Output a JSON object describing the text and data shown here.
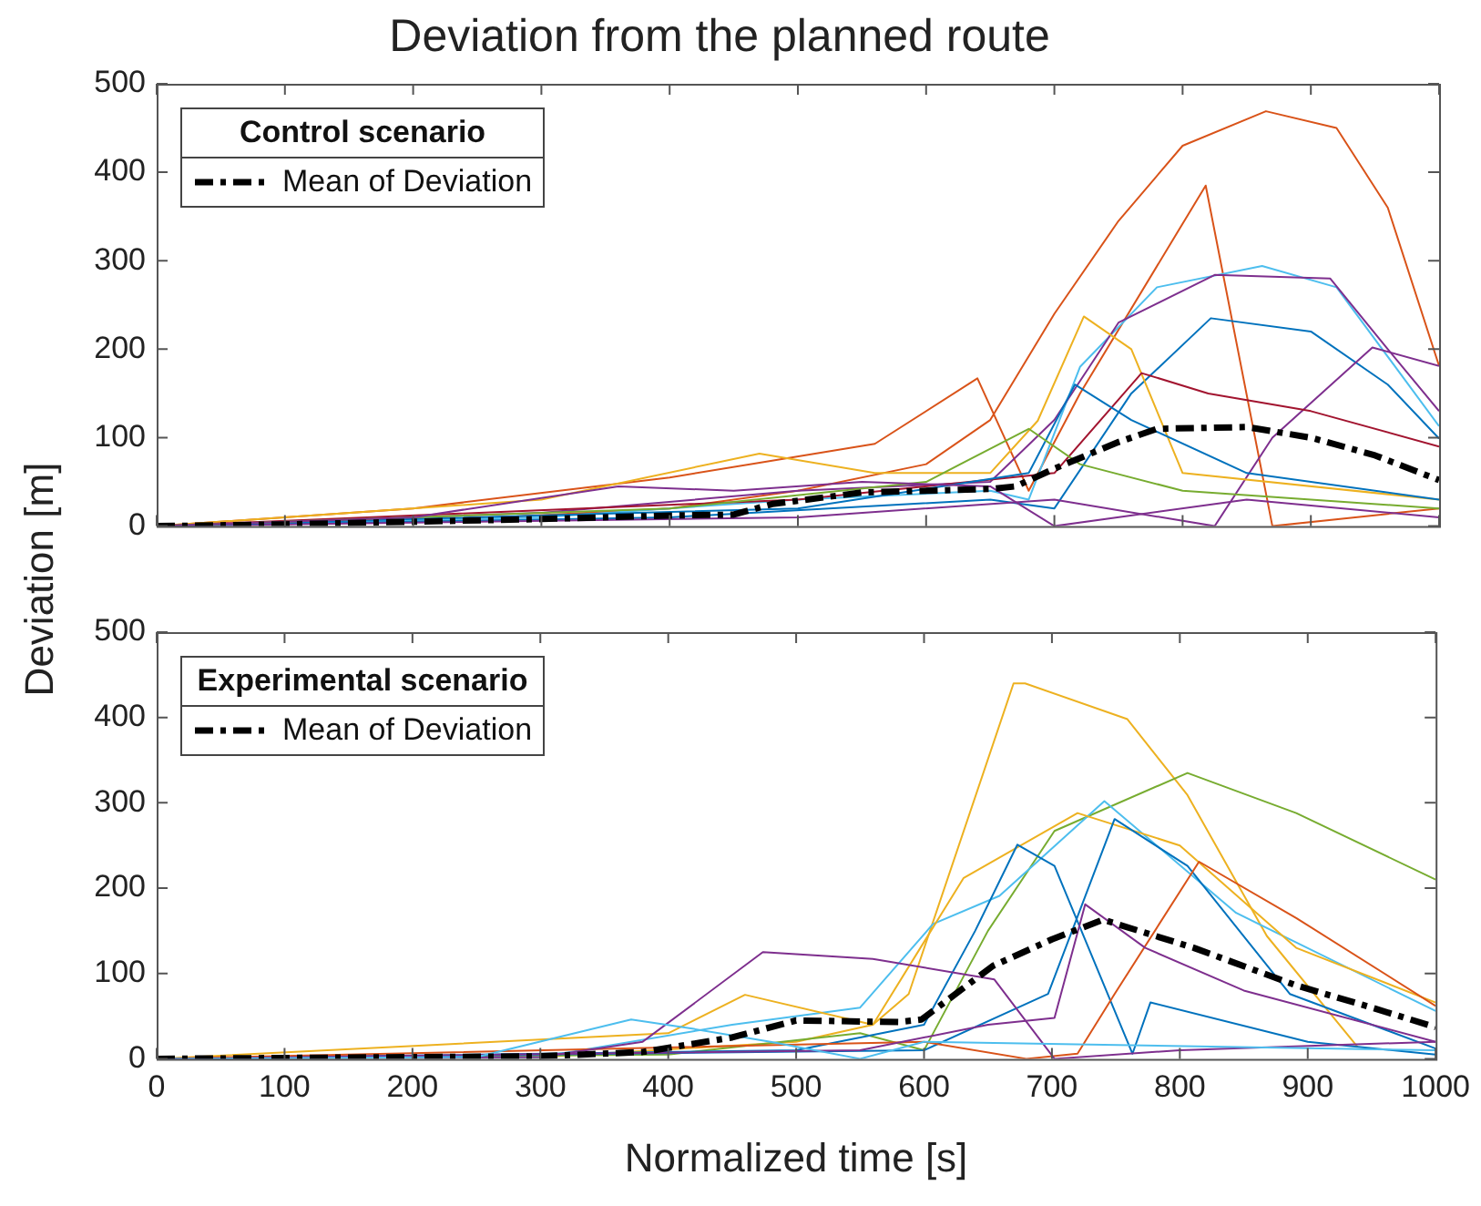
{
  "chart_data": [
    {
      "type": "line",
      "title": "Deviation from the planned route",
      "ylabel": "Deviation [m]",
      "legend_title": "Control scenario",
      "legend": "top left",
      "grid": false,
      "marker": "none",
      "tick_labels": "y",
      "xlim": [
        0,
        1000
      ],
      "xticks": [
        0,
        100,
        200,
        300,
        400,
        500,
        600,
        700,
        800,
        900,
        1000
      ],
      "ylim": [
        0,
        500
      ],
      "yticks": [
        0,
        100,
        200,
        300,
        400,
        500
      ],
      "series": [
        {
          "color": "#d95319",
          "x": [
            0,
            200,
            400,
            500,
            600,
            650,
            700,
            750,
            800,
            865,
            920,
            960,
            1000
          ],
          "values": [
            0,
            5,
            20,
            40,
            70,
            120,
            240,
            345,
            430,
            469,
            450,
            360,
            181
          ]
        },
        {
          "color": "#d95319",
          "x": [
            0,
            200,
            400,
            560,
            640,
            680,
            720,
            818,
            870,
            1000
          ],
          "values": [
            0,
            20,
            55,
            93,
            167,
            40,
            150,
            385,
            0,
            20
          ]
        },
        {
          "color": "#4dbeee",
          "x": [
            0,
            300,
            500,
            650,
            680,
            720,
            780,
            862,
            920,
            1000
          ],
          "values": [
            0,
            10,
            30,
            40,
            30,
            180,
            270,
            294,
            270,
            113
          ]
        },
        {
          "color": "#7e2f8e",
          "x": [
            0,
            300,
            500,
            650,
            700,
            750,
            825,
            915,
            960,
            1000
          ],
          "values": [
            0,
            15,
            40,
            50,
            120,
            230,
            284,
            280,
            200,
            130
          ]
        },
        {
          "color": "#0072bd",
          "x": [
            0,
            400,
            650,
            700,
            760,
            822,
            900,
            960,
            1000
          ],
          "values": [
            0,
            10,
            30,
            20,
            150,
            235,
            220,
            160,
            99
          ]
        },
        {
          "color": "#7e2f8e",
          "x": [
            0,
            500,
            700,
            825,
            870,
            948,
            1000
          ],
          "values": [
            0,
            10,
            30,
            0,
            100,
            202,
            181
          ]
        },
        {
          "color": "#edb120",
          "x": [
            0,
            300,
            470,
            560,
            650,
            687,
            723,
            760,
            800,
            1000
          ],
          "values": [
            0,
            30,
            82,
            60,
            60,
            119,
            237,
            200,
            60,
            30
          ]
        },
        {
          "color": "#a2142f",
          "x": [
            0,
            500,
            700,
            768,
            820,
            900,
            1000
          ],
          "values": [
            0,
            30,
            60,
            173,
            150,
            130,
            90
          ]
        },
        {
          "color": "#0072bd",
          "x": [
            0,
            500,
            680,
            716,
            760,
            850,
            1000
          ],
          "values": [
            0,
            20,
            60,
            160,
            120,
            60,
            30
          ]
        },
        {
          "color": "#77ac30",
          "x": [
            0,
            400,
            600,
            680,
            720,
            800,
            900,
            1000
          ],
          "values": [
            0,
            20,
            50,
            110,
            70,
            40,
            30,
            20
          ]
        },
        {
          "color": "#7e2f8e",
          "x": [
            0,
            200,
            360,
            450,
            550,
            650,
            700,
            850,
            1000
          ],
          "values": [
            0,
            10,
            45,
            40,
            50,
            45,
            0,
            30,
            10
          ]
        },
        {
          "name": "Mean of Deviation",
          "color": "#000000",
          "line_style": "dashed",
          "x": [
            0,
            100,
            200,
            300,
            400,
            450,
            480,
            550,
            650,
            670,
            700,
            750,
            780,
            850,
            900,
            950,
            1000
          ],
          "values": [
            0,
            2,
            5,
            8,
            12,
            13,
            25,
            38,
            42,
            45,
            65,
            95,
            110,
            112,
            100,
            80,
            52
          ]
        }
      ]
    },
    {
      "type": "line",
      "xlabel": "Normalized time [s]",
      "legend_title": "Experimental scenario",
      "legend": "top left",
      "grid": false,
      "marker": "none",
      "xlim": [
        0,
        1000
      ],
      "xticks": [
        0,
        100,
        200,
        300,
        400,
        500,
        600,
        700,
        800,
        900,
        1000
      ],
      "ylim": [
        0,
        500
      ],
      "yticks": [
        0,
        100,
        200,
        300,
        400,
        500
      ],
      "series": [
        {
          "color": "#edb120",
          "x": [
            0,
            300,
            500,
            560,
            588,
            670,
            679,
            759,
            806,
            868,
            939
          ],
          "values": [
            0,
            2,
            20,
            40,
            76,
            440,
            440,
            398,
            309,
            144,
            14
          ]
        },
        {
          "color": "#77ac30",
          "x": [
            0,
            400,
            550,
            600,
            650,
            702,
            806,
            891,
            1000
          ],
          "values": [
            0,
            5,
            30,
            10,
            150,
            267,
            335,
            288,
            210
          ]
        },
        {
          "color": "#4dbeee",
          "x": [
            0,
            300,
            450,
            550,
            607,
            659,
            741,
            844,
            1000
          ],
          "values": [
            0,
            2,
            40,
            60,
            158,
            191,
            302,
            171,
            56
          ]
        },
        {
          "color": "#edb120",
          "x": [
            0,
            400,
            460,
            560,
            631,
            720,
            800,
            891,
            1000
          ],
          "values": [
            0,
            30,
            75,
            40,
            212,
            288,
            250,
            130,
            66
          ]
        },
        {
          "color": "#0072bd",
          "x": [
            0,
            500,
            600,
            640,
            673,
            702,
            763,
            777,
            900,
            1000
          ],
          "values": [
            0,
            10,
            40,
            150,
            251,
            226,
            6,
            66,
            20,
            5
          ]
        },
        {
          "color": "#0072bd",
          "x": [
            0,
            600,
            697,
            749,
            806,
            886,
            1000
          ],
          "values": [
            0,
            10,
            76,
            281,
            226,
            76,
            12
          ]
        },
        {
          "color": "#d95319",
          "x": [
            0,
            600,
            680,
            720,
            749,
            815,
            891,
            1000
          ],
          "values": [
            0,
            20,
            0,
            6,
            76,
            231,
            165,
            62
          ]
        },
        {
          "color": "#7e2f8e",
          "x": [
            0,
            300,
            380,
            474,
            560,
            655,
            702,
            800,
            1000
          ],
          "values": [
            0,
            2,
            20,
            125,
            117,
            93,
            0,
            10,
            20
          ]
        },
        {
          "color": "#7e2f8e",
          "x": [
            0,
            550,
            650,
            702,
            726,
            773,
            850,
            1000
          ],
          "values": [
            0,
            10,
            40,
            48,
            181,
            130,
            80,
            20
          ]
        },
        {
          "color": "#4dbeee",
          "x": [
            0,
            250,
            371,
            420,
            480,
            550,
            600,
            1000
          ],
          "values": [
            0,
            2,
            46,
            35,
            20,
            0,
            20,
            10
          ]
        },
        {
          "name": "Mean of Deviation",
          "color": "#000000",
          "line_style": "dashed",
          "x": [
            0,
            100,
            200,
            300,
            380,
            450,
            500,
            580,
            598,
            654,
            700,
            740,
            811,
            891,
            950,
            1000
          ],
          "values": [
            0,
            1,
            2,
            3,
            8,
            25,
            45,
            43,
            46,
            109,
            140,
            163,
            130,
            86,
            60,
            37
          ]
        }
      ]
    }
  ]
}
